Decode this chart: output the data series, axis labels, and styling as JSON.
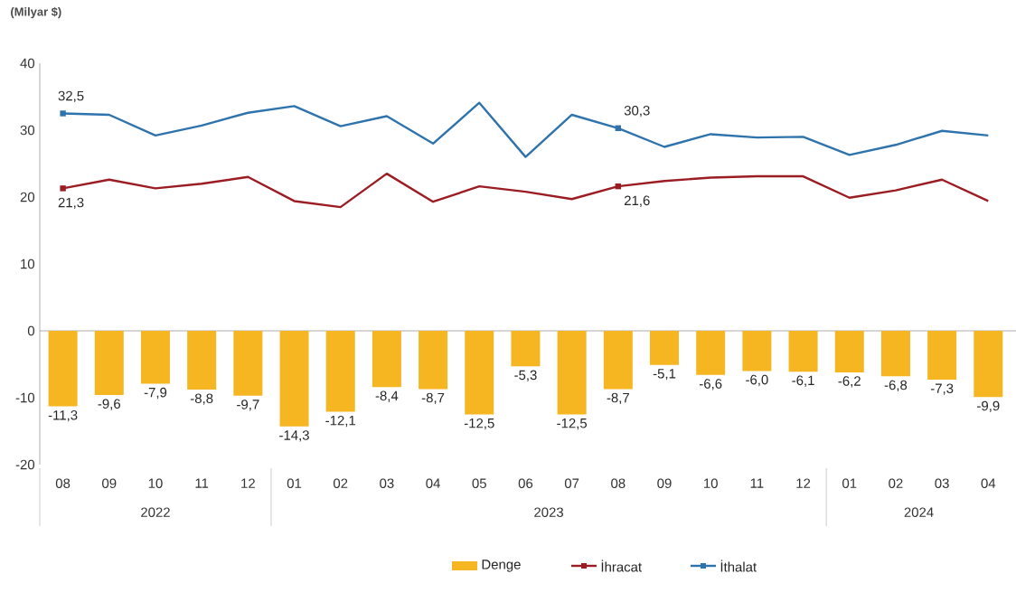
{
  "chart_data": {
    "type": "bar",
    "ylabel": "(Milyar $)",
    "categories": [
      "08",
      "09",
      "10",
      "11",
      "12",
      "01",
      "02",
      "03",
      "04",
      "05",
      "06",
      "07",
      "08",
      "09",
      "10",
      "11",
      "12",
      "01",
      "02",
      "03",
      "04"
    ],
    "series": [
      {
        "name": "Denge",
        "color": "#f5b622",
        "values": [
          -11.3,
          -9.6,
          -7.9,
          -8.8,
          -9.7,
          -14.3,
          -12.1,
          -8.4,
          -8.7,
          -12.5,
          -5.3,
          -12.5,
          -8.7,
          -5.1,
          -6.6,
          -6.0,
          -6.1,
          -6.2,
          -6.8,
          -7.3,
          -9.9
        ],
        "value_labels": [
          "-11,3",
          "-9,6",
          "-7,9",
          "-8,8",
          "-9,7",
          "-14,3",
          "-12,1",
          "-8,4",
          "-8,7",
          "-12,5",
          "-5,3",
          "-12,5",
          "-8,7",
          "-5,1",
          "-6,6",
          "-6,0",
          "-6,1",
          "-6,2",
          "-6,8",
          "-7,3",
          "-9,9"
        ]
      },
      {
        "name": "İhracat",
        "type": "line",
        "color": "#9b1c22",
        "values": [
          21.3,
          22.6,
          21.3,
          22.0,
          23.0,
          19.4,
          18.5,
          23.5,
          19.3,
          21.6,
          20.8,
          19.7,
          21.6,
          22.4,
          22.9,
          23.1,
          23.1,
          19.9,
          21.0,
          22.6,
          19.4
        ],
        "value_labels": [
          "21,3",
          null,
          null,
          null,
          null,
          null,
          null,
          null,
          null,
          null,
          null,
          null,
          "21,6",
          null,
          null,
          null,
          null,
          null,
          null,
          null,
          null
        ]
      },
      {
        "name": "İthalat",
        "type": "line",
        "color": "#2f73ad",
        "values": [
          32.5,
          32.3,
          29.2,
          30.7,
          32.6,
          33.6,
          30.6,
          32.1,
          28.0,
          34.1,
          26.0,
          32.3,
          30.3,
          27.5,
          29.4,
          28.9,
          29.0,
          26.3,
          27.8,
          29.9,
          29.2
        ],
        "value_labels": [
          "32,5",
          null,
          null,
          null,
          null,
          null,
          null,
          null,
          null,
          null,
          null,
          null,
          "30,3",
          null,
          null,
          null,
          null,
          null,
          null,
          null,
          null
        ]
      }
    ],
    "annotations": [
      "2022",
      "2023",
      "2024"
    ],
    "ylim": [
      -20,
      40
    ],
    "yticks": [
      -20,
      -10,
      0,
      10,
      20,
      30,
      40
    ],
    "legend": "bottom"
  }
}
